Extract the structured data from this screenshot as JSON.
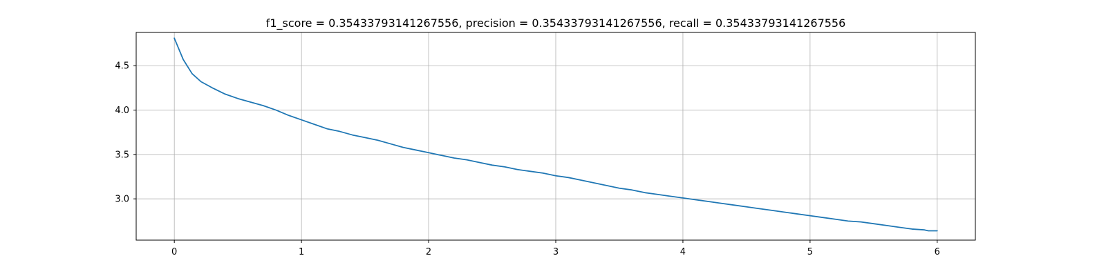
{
  "chart_data": {
    "type": "line",
    "title": "f1_score = 0.35433793141267556, precision = 0.35433793141267556, recall = 0.35433793141267556",
    "xlabel": "",
    "ylabel": "",
    "xlim": [
      -0.3,
      6.3
    ],
    "ylim": [
      2.535,
      4.875
    ],
    "grid": true,
    "legend": "none",
    "x_ticks": [
      0,
      1,
      2,
      3,
      4,
      5,
      6
    ],
    "x_tick_labels": [
      "0",
      "1",
      "2",
      "3",
      "4",
      "5",
      "6"
    ],
    "y_ticks": [
      3.0,
      3.5,
      4.0,
      4.5
    ],
    "y_tick_labels": [
      "3.0",
      "3.5",
      "4.0",
      "4.5"
    ],
    "line_color": "#1f77b4",
    "series": [
      {
        "x": [
          0,
          0.07,
          0.14,
          0.21,
          0.3,
          0.4,
          0.5,
          0.6,
          0.7,
          0.8,
          0.9,
          1.0,
          1.1,
          1.2,
          1.3,
          1.4,
          1.5,
          1.6,
          1.7,
          1.8,
          1.9,
          2.0,
          2.1,
          2.2,
          2.3,
          2.4,
          2.5,
          2.6,
          2.7,
          2.8,
          2.9,
          3.0,
          3.1,
          3.2,
          3.3,
          3.4,
          3.5,
          3.6,
          3.7,
          3.8,
          3.9,
          4.0,
          4.1,
          4.2,
          4.3,
          4.4,
          4.5,
          4.6,
          4.7,
          4.8,
          4.9,
          5.0,
          5.1,
          5.2,
          5.3,
          5.4,
          5.5,
          5.6,
          5.7,
          5.8,
          5.9,
          5.93,
          6.0
        ],
        "values": [
          4.81,
          4.57,
          4.41,
          4.32,
          4.25,
          4.18,
          4.13,
          4.09,
          4.05,
          4.0,
          3.94,
          3.89,
          3.84,
          3.79,
          3.76,
          3.72,
          3.69,
          3.66,
          3.62,
          3.58,
          3.55,
          3.52,
          3.49,
          3.46,
          3.44,
          3.41,
          3.38,
          3.36,
          3.33,
          3.31,
          3.29,
          3.26,
          3.24,
          3.21,
          3.18,
          3.15,
          3.12,
          3.1,
          3.07,
          3.05,
          3.03,
          3.01,
          2.99,
          2.97,
          2.95,
          2.93,
          2.91,
          2.89,
          2.87,
          2.85,
          2.83,
          2.81,
          2.79,
          2.77,
          2.75,
          2.74,
          2.72,
          2.7,
          2.68,
          2.66,
          2.65,
          2.64,
          2.64
        ]
      }
    ]
  }
}
